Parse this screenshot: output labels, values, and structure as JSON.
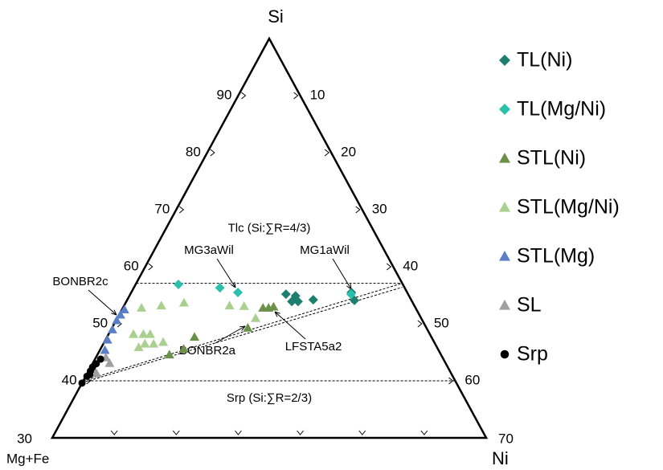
{
  "chart_data": {
    "type": "ternary",
    "axis_labels": {
      "top": "Si",
      "left": "Mg+Fe",
      "right": "Ni"
    },
    "si_lim": [
      30,
      100
    ],
    "ni_lim": [
      0,
      70
    ],
    "si_ticks": [
      30,
      40,
      50,
      60,
      70,
      80,
      90
    ],
    "ni_ticks": [
      10,
      20,
      30,
      40,
      50,
      60,
      70
    ],
    "tie_lines": [
      {
        "label": "Tlc (Si:∑R=4/3)",
        "si": 57.1
      },
      {
        "label": "Srp (Si:∑R=2/3)",
        "si": 40
      }
    ],
    "annotations": [
      "MG3aWil",
      "MG1aWil",
      "BONBR2c",
      "BONBR2a",
      "LFSTA5a2"
    ],
    "series": [
      {
        "name": "TL(Ni)",
        "color": "#1f7f6e",
        "marker": "diamond",
        "si": [
          55.2,
          53.9,
          54.9,
          53.9,
          54.2,
          55.5,
          54.1
        ],
        "ni": [
          25.1,
          26.7,
          26.8,
          27.7,
          30.0,
          35.5,
          36.7
        ]
      },
      {
        "name": "TL(Mg/Ni)",
        "color": "#2bbfae",
        "marker": "diamond",
        "si": [
          56.9,
          56.3,
          55.5,
          55.2
        ],
        "ni": [
          6.9,
          13.9,
          17.2,
          35.6
        ]
      },
      {
        "name": "STL(Ni)",
        "color": "#6b9148",
        "marker": "triangle",
        "si": [
          52.8,
          52.8,
          53.0,
          49.3,
          47.7,
          45.6,
          44.6
        ],
        "ni": [
          22.6,
          23.5,
          24.2,
          21.9,
          14.1,
          13.4,
          11.6
        ]
      },
      {
        "name": "STL(Mg/Ni)",
        "color": "#a9d08e",
        "marker": "triangle",
        "si": [
          52.8,
          53.2,
          53.7,
          53.2,
          53.1,
          51.0,
          48.2,
          48.2,
          48.2,
          46.5,
          45.9,
          46.5,
          46.8
        ],
        "ni": [
          3.0,
          6.0,
          9.4,
          17.0,
          19.4,
          22.3,
          4.0,
          5.6,
          6.7,
          6.7,
          6.0,
          8.1,
          9.5
        ]
      },
      {
        "name": "STL(Mg)",
        "color": "#5b7fc7",
        "marker": "triangle",
        "si": [
          52.5,
          51.6,
          50.6,
          49.0,
          47.2,
          45.4
        ],
        "ni": [
          0.4,
          0.2,
          0.1,
          0.2,
          0.3,
          0.8
        ]
      },
      {
        "name": "SL",
        "color": "#a0a0a0",
        "marker": "triangle",
        "si": [
          44.1,
          43.1,
          42.0,
          41.3
        ],
        "ni": [
          1.6,
          2.7,
          0.6,
          1.5
        ]
      },
      {
        "name": "Srp",
        "color": "#000000",
        "marker": "circle",
        "si": [
          39.6,
          40.8,
          41.7,
          42.4,
          43.0,
          43.8,
          41.1
        ],
        "ni": [
          0,
          0.2,
          0.3,
          0.3,
          0.6,
          0.9,
          0.5
        ]
      }
    ]
  }
}
